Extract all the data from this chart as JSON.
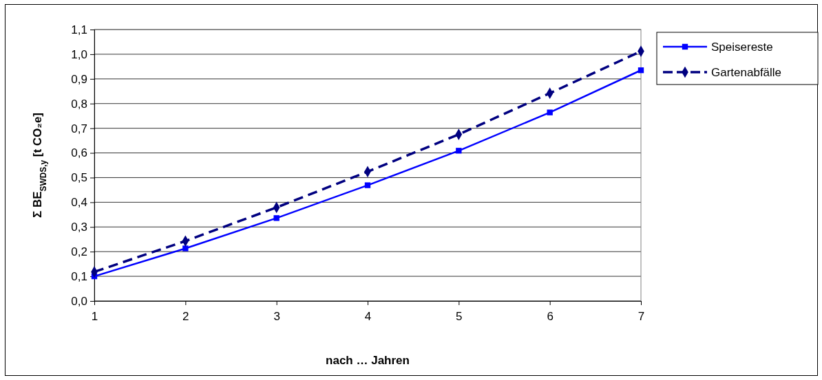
{
  "chart_data": {
    "type": "line",
    "xlabel": "nach … Jahren",
    "ylabel": "Σ BE$_{SWDS,y}$ [t CO₂e]",
    "x": [
      1,
      2,
      3,
      4,
      5,
      6,
      7
    ],
    "series": [
      {
        "name": "Speisereste",
        "color": "#0000ff",
        "marker": "square",
        "line_style": "solid",
        "values": [
          0.1,
          0.213,
          0.336,
          0.469,
          0.609,
          0.764,
          0.935
        ]
      },
      {
        "name": "Gartenabfälle",
        "color": "#000080",
        "marker": "diamond",
        "line_style": "dashed",
        "values": [
          0.118,
          0.243,
          0.379,
          0.524,
          0.675,
          0.842,
          1.012
        ]
      }
    ],
    "xlim": [
      1,
      7
    ],
    "xticks": [
      1,
      2,
      3,
      4,
      5,
      6,
      7
    ],
    "ylim": [
      0,
      1.1
    ],
    "yticks": [
      {
        "value": 0,
        "label": "0,0"
      },
      {
        "value": 0.1,
        "label": "0,1"
      },
      {
        "value": 0.2,
        "label": "0,2"
      },
      {
        "value": 0.3,
        "label": "0,3"
      },
      {
        "value": 0.4,
        "label": "0,4"
      },
      {
        "value": 0.5,
        "label": "0,5"
      },
      {
        "value": 0.6,
        "label": "0,6"
      },
      {
        "value": 0.7,
        "label": "0,7"
      },
      {
        "value": 0.8,
        "label": "0,8"
      },
      {
        "value": 0.9,
        "label": "0,9"
      },
      {
        "value": 1.0,
        "label": "1,0"
      },
      {
        "value": 1.1,
        "label": "1,1"
      }
    ],
    "grid": "y",
    "legend": "right"
  }
}
